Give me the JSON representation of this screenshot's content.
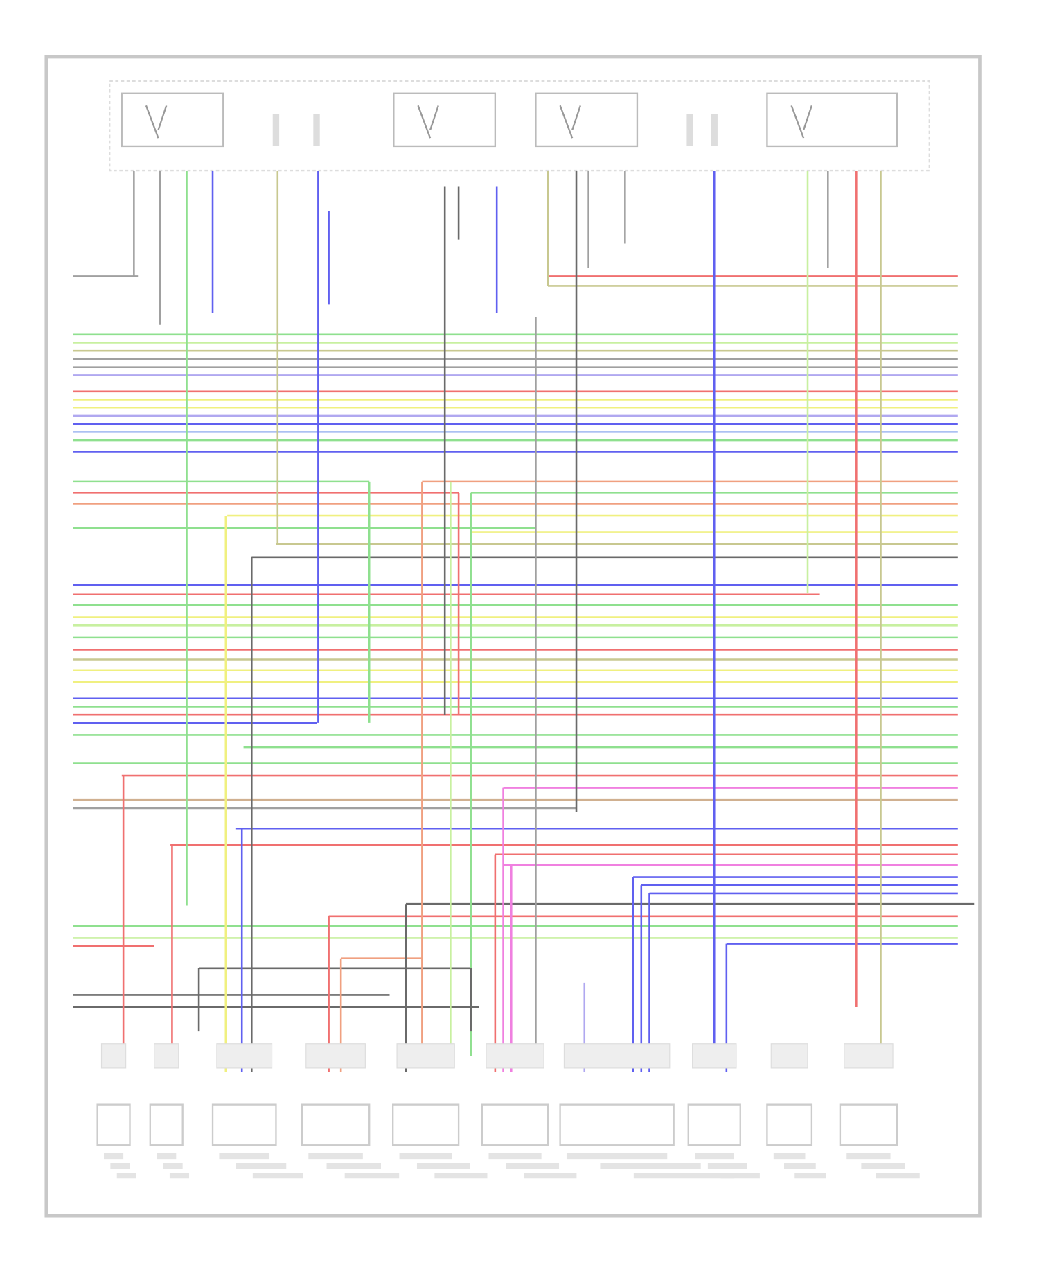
{
  "diagram": {
    "wire_colors": {
      "green": "#8fe08f",
      "lightgreen": "#c8f0a0",
      "olive": "#c8c890",
      "gray": "#a0a0a0",
      "dark": "#6a6a6a",
      "lavender": "#b0a8f0",
      "blue": "#6060f0",
      "lightblue": "#a0b8f0",
      "red": "#f07070",
      "salmon": "#f0a080",
      "yellow": "#f0f080",
      "pink": "#f080e0",
      "tan": "#d0b090"
    },
    "frame_color": "#c8c8c8",
    "top_relay_count": 4,
    "bottom_component_count": 10
  }
}
